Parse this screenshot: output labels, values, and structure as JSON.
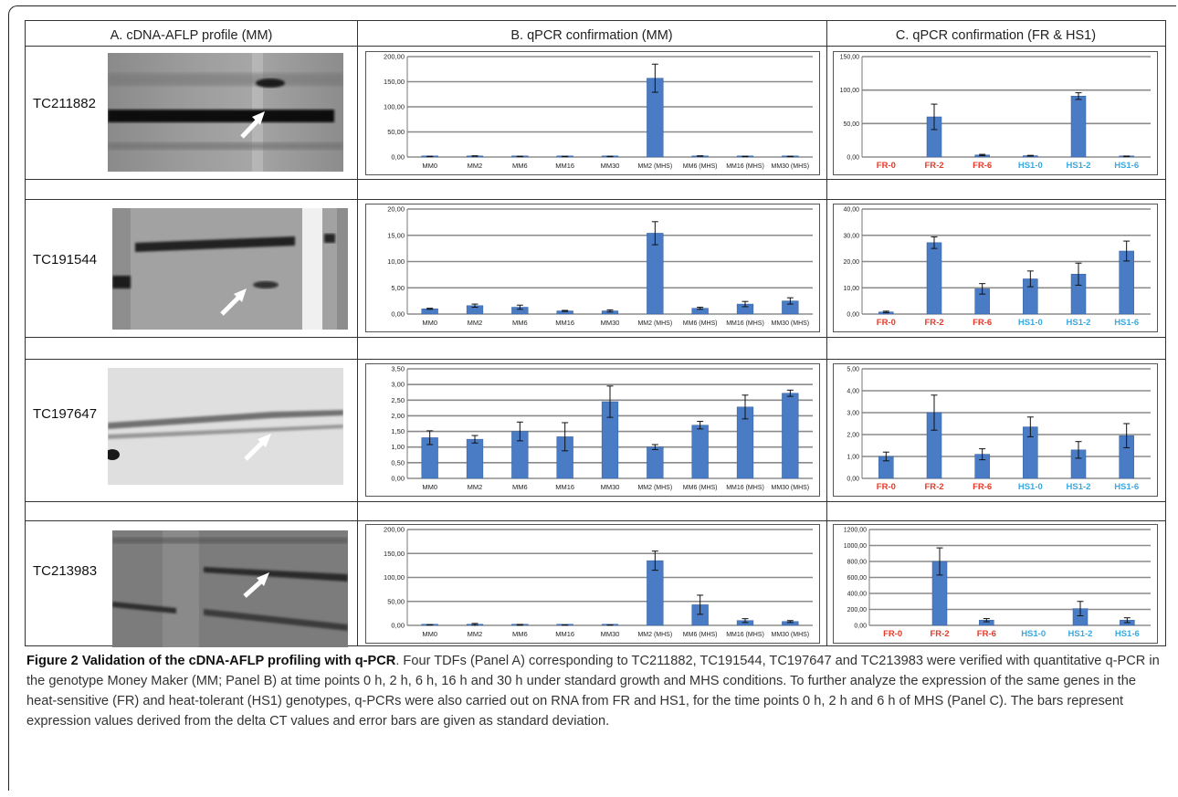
{
  "panel_headers": {
    "a": "A. cDNA-AFLP profile (MM)",
    "b": "B. qPCR confirmation (MM)",
    "c": "C. qPCR confirmation (FR & HS1)"
  },
  "genes": [
    "TC211882",
    "TC191544",
    "TC197647",
    "TC213983"
  ],
  "colors": {
    "bar": "#4a7cc6",
    "bar_edge": "#2f5a9a",
    "fr_label": "#e53a2a",
    "hs1_label": "#39a9e0",
    "grid": "#8a8a8a"
  },
  "caption": {
    "title": "Figure 2 Validation of the cDNA-AFLP profiling with q-PCR",
    "body": ". Four TDFs (Panel A) corresponding to TC211882, TC191544, TC197647 and TC213983 were verified with quantitative q-PCR in the genotype Money Maker (MM; Panel B) at time points 0 h, 2 h, 6 h, 16 h and 30 h under standard growth and MHS conditions. To further analyze the expression of the same genes in the heat-sensitive (FR) and heat-tolerant (HS1) genotypes, q-PCRs were also carried out on RNA from FR and HS1, for the time points 0 h, 2 h and 6 h of MHS (Panel C). The bars represent expression values derived from the delta CT values and error bars are given as standard deviation."
  },
  "chart_data": [
    {
      "id": "B1",
      "type": "bar",
      "categories": [
        "MM0",
        "MM2",
        "MM6",
        "MM16",
        "MM30",
        "MM2 (MHS)",
        "MM6 (MHS)",
        "MM16 (MHS)",
        "MM30 (MHS)"
      ],
      "values": [
        1,
        2,
        1,
        1,
        1,
        157,
        2,
        1,
        1
      ],
      "errors": [
        0.5,
        0.5,
        0.5,
        0.5,
        0.5,
        28,
        0.5,
        0.5,
        0.5
      ],
      "ylim": [
        0,
        200
      ],
      "ticks": [
        "0,00",
        "50,00",
        "100,00",
        "150,00",
        "200,00"
      ]
    },
    {
      "id": "C1",
      "type": "bar",
      "categories": [
        "FR-0",
        "FR-2",
        "FR-6",
        "HS1-0",
        "HS1-2",
        "HS1-6"
      ],
      "values": [
        0,
        60,
        3,
        2,
        91,
        1
      ],
      "errors": [
        0,
        19,
        1,
        0.5,
        5,
        0.5
      ],
      "ylim": [
        0,
        150
      ],
      "ticks": [
        "0,00",
        "50,00",
        "100,00",
        "150,00"
      ]
    },
    {
      "id": "B2",
      "type": "bar",
      "categories": [
        "MM0",
        "MM2",
        "MM6",
        "MM16",
        "MM30",
        "MM2 (MHS)",
        "MM6 (MHS)",
        "MM16 (MHS)",
        "MM30 (MHS)"
      ],
      "values": [
        1.0,
        1.6,
        1.3,
        0.6,
        0.6,
        15.4,
        1.1,
        1.9,
        2.5
      ],
      "errors": [
        0.1,
        0.3,
        0.4,
        0.1,
        0.2,
        2.2,
        0.2,
        0.5,
        0.6
      ],
      "ylim": [
        0,
        20
      ],
      "ticks": [
        "0,00",
        "5,00",
        "10,00",
        "15,00",
        "20,00"
      ]
    },
    {
      "id": "C2",
      "type": "bar",
      "categories": [
        "FR-0",
        "FR-2",
        "FR-6",
        "HS1-0",
        "HS1-2",
        "HS1-6"
      ],
      "values": [
        0.8,
        27.2,
        9.6,
        13.4,
        15.2,
        24.0
      ],
      "errors": [
        0.3,
        2.2,
        2.0,
        3.0,
        4.2,
        3.8
      ],
      "ylim": [
        0,
        40
      ],
      "ticks": [
        "0,00",
        "10,00",
        "20,00",
        "30,00",
        "40,00"
      ]
    },
    {
      "id": "B3",
      "type": "bar",
      "categories": [
        "MM0",
        "MM2",
        "MM6",
        "MM16",
        "MM30",
        "MM2 (MHS)",
        "MM6 (MHS)",
        "MM16 (MHS)",
        "MM30 (MHS)"
      ],
      "values": [
        1.3,
        1.25,
        1.5,
        1.33,
        2.45,
        1.0,
        1.7,
        2.28,
        2.72
      ],
      "errors": [
        0.22,
        0.12,
        0.3,
        0.45,
        0.5,
        0.08,
        0.12,
        0.38,
        0.1
      ],
      "ylim": [
        0,
        3.5
      ],
      "ticks": [
        "0,00",
        "0,50",
        "1,00",
        "1,50",
        "2,00",
        "2,50",
        "3,00",
        "3,50"
      ]
    },
    {
      "id": "C3",
      "type": "bar",
      "categories": [
        "FR-0",
        "FR-2",
        "FR-6",
        "HS1-0",
        "HS1-2",
        "HS1-6"
      ],
      "values": [
        1.0,
        3.0,
        1.1,
        2.35,
        1.3,
        1.95
      ],
      "errors": [
        0.2,
        0.8,
        0.25,
        0.45,
        0.38,
        0.55
      ],
      "ylim": [
        0,
        5
      ],
      "ticks": [
        "0,00",
        "1,00",
        "2,00",
        "3,00",
        "4,00",
        "5,00"
      ]
    },
    {
      "id": "B4",
      "type": "bar",
      "categories": [
        "MM0",
        "MM2",
        "MM6",
        "MM16",
        "MM30",
        "MM2 (MHS)",
        "MM6 (MHS)",
        "MM16 (MHS)",
        "MM30 (MHS)"
      ],
      "values": [
        1,
        2,
        1,
        0.5,
        0.5,
        135,
        43,
        10,
        8
      ],
      "errors": [
        0.5,
        2,
        1,
        0.3,
        0.3,
        20,
        20,
        4,
        2
      ],
      "ylim": [
        0,
        200
      ],
      "ticks": [
        "0,00",
        "50,00",
        "100,00",
        "150,00",
        "200,00"
      ]
    },
    {
      "id": "C4",
      "type": "bar",
      "categories": [
        "FR-0",
        "FR-2",
        "FR-6",
        "HS1-0",
        "HS1-2",
        "HS1-6"
      ],
      "values": [
        0,
        800,
        65,
        0,
        210,
        65
      ],
      "errors": [
        0,
        170,
        20,
        0,
        90,
        30
      ],
      "ylim": [
        0,
        1200
      ],
      "ticks": [
        "0,00",
        "200,00",
        "400,00",
        "600,00",
        "800,00",
        "1000,00",
        "1200,00"
      ]
    }
  ]
}
